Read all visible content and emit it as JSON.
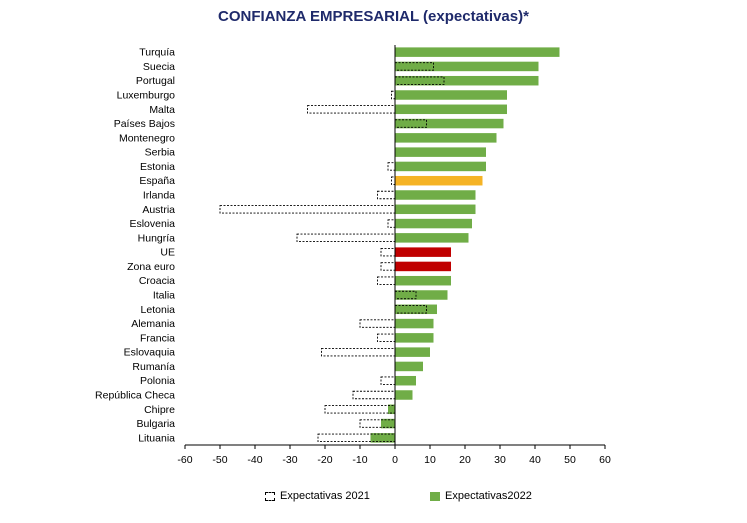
{
  "chart_data": {
    "type": "bar",
    "orientation": "horizontal",
    "title": "CONFIANZA EMPRESARIAL (expectativas)*",
    "xlim": [
      -60,
      60
    ],
    "xticks": [
      -60,
      -50,
      -40,
      -30,
      -20,
      -10,
      0,
      10,
      20,
      30,
      40,
      50,
      60
    ],
    "categories": [
      "Turquía",
      "Suecia",
      "Portugal",
      "Luxemburgo",
      "Malta",
      "Países Bajos",
      "Montenegro",
      "Serbia",
      "Estonia",
      "España",
      "Irlanda",
      "Austria",
      "Eslovenia",
      "Hungría",
      "UE",
      "Zona euro",
      "Croacia",
      "Italia",
      "Letonia",
      "Alemania",
      "Francia",
      "Eslovaquia",
      "Rumanía",
      "Polonia",
      "República Checa",
      "Chipre",
      "Bulgaria",
      "Lituania"
    ],
    "series": [
      {
        "name": "Expectativas 2021",
        "style": "dashed-outline",
        "values": [
          0,
          11,
          14,
          -1,
          -25,
          9,
          0,
          0,
          -2,
          -1,
          -5,
          -50,
          -2,
          -28,
          -4,
          -4,
          -5,
          6,
          9,
          -10,
          -5,
          -21,
          0,
          -4,
          -12,
          -20,
          -10,
          -22
        ]
      },
      {
        "name": "Expectativas2022",
        "color": "#70ad47",
        "values": [
          47,
          41,
          41,
          32,
          32,
          31,
          29,
          26,
          26,
          25,
          23,
          23,
          22,
          21,
          16,
          16,
          16,
          15,
          12,
          11,
          11,
          10,
          8,
          6,
          5,
          -2,
          -4,
          -7
        ]
      }
    ],
    "highlight_colors": {
      "España": "#f5b325",
      "UE": "#c00000",
      "Zona euro": "#c00000"
    },
    "legend_position": "bottom",
    "grid": false
  }
}
